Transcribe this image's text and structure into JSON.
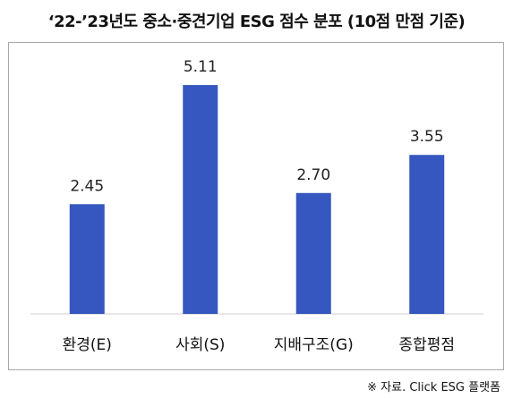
{
  "chart_data": {
    "type": "bar",
    "title": "‘22-’23년도 중소·중견기업 ESG 점수 분포 (10점 만점 기준)",
    "categories": [
      "환경(E)",
      "사회(S)",
      "지배구조(G)",
      "종합평점"
    ],
    "values": [
      2.45,
      5.11,
      2.7,
      3.55
    ],
    "data_labels": [
      "2.45",
      "5.11",
      "2.70",
      "3.55"
    ],
    "ylim": [
      0,
      6.05
    ],
    "grid": false,
    "legend": "none",
    "bar_color": "#3557bf"
  },
  "source_note": "※ 자료. Click ESG 플랫폼"
}
